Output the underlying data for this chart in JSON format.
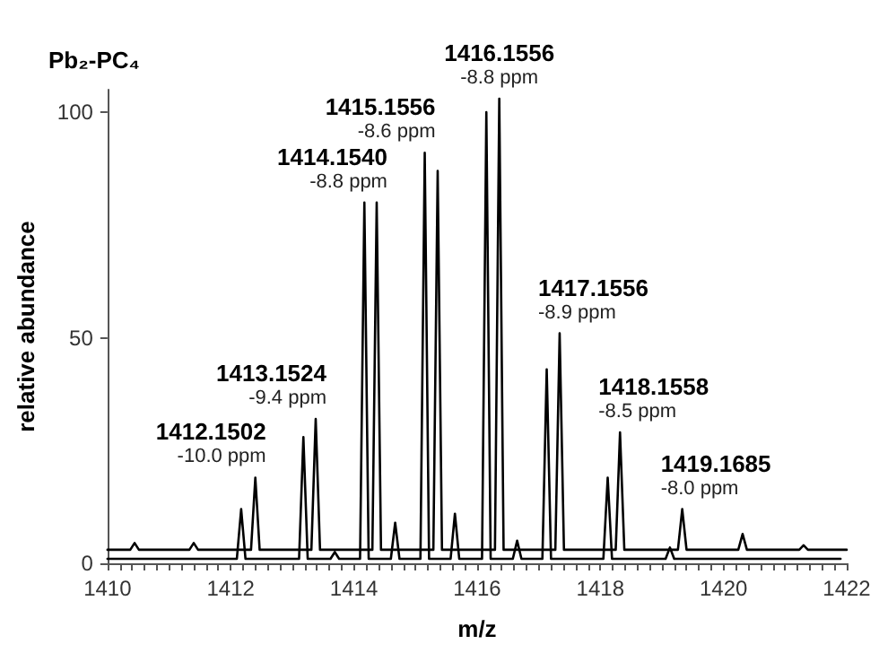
{
  "chart_data": {
    "type": "line",
    "title": "Pb₂-PC₄",
    "xlabel": "m/z",
    "ylabel": "relative abundance",
    "xlim": [
      1410,
      1422
    ],
    "xticks": [
      1410,
      {
        "value": 1410.2,
        "label": null
      },
      {
        "value": 1410.4,
        "label": null
      },
      {
        "value": 1410.6,
        "label": null
      },
      {
        "value": 1410.8,
        "label": null
      },
      {
        "value": 1411,
        "label": null
      },
      {
        "value": 1411.2,
        "label": null
      },
      {
        "value": 1411.4,
        "label": null
      },
      {
        "value": 1411.6,
        "label": null
      },
      {
        "value": 1411.8,
        "label": null
      },
      1412,
      {
        "value": 1412.2,
        "label": null
      },
      {
        "value": 1412.4,
        "label": null
      },
      {
        "value": 1412.6,
        "label": null
      },
      {
        "value": 1412.8,
        "label": null
      },
      {
        "value": 1413,
        "label": null
      },
      {
        "value": 1413.2,
        "label": null
      },
      {
        "value": 1413.4,
        "label": null
      },
      {
        "value": 1413.6,
        "label": null
      },
      {
        "value": 1413.8,
        "label": null
      },
      1414,
      {
        "value": 1414.2,
        "label": null
      },
      {
        "value": 1414.4,
        "label": null
      },
      {
        "value": 1414.6,
        "label": null
      },
      {
        "value": 1414.8,
        "label": null
      },
      {
        "value": 1415,
        "label": null
      },
      {
        "value": 1415.2,
        "label": null
      },
      {
        "value": 1415.4,
        "label": null
      },
      {
        "value": 1415.6,
        "label": null
      },
      {
        "value": 1415.8,
        "label": null
      },
      1416,
      {
        "value": 1416.2,
        "label": null
      },
      {
        "value": 1416.4,
        "label": null
      },
      {
        "value": 1416.6,
        "label": null
      },
      {
        "value": 1416.8,
        "label": null
      },
      {
        "value": 1417,
        "label": null
      },
      {
        "value": 1417.2,
        "label": null
      },
      {
        "value": 1417.4,
        "label": null
      },
      {
        "value": 1417.6,
        "label": null
      },
      {
        "value": 1417.8,
        "label": null
      },
      1418,
      {
        "value": 1418.2,
        "label": null
      },
      {
        "value": 1418.4,
        "label": null
      },
      {
        "value": 1418.6,
        "label": null
      },
      {
        "value": 1418.8,
        "label": null
      },
      {
        "value": 1419,
        "label": null
      },
      {
        "value": 1419.2,
        "label": null
      },
      {
        "value": 1419.4,
        "label": null
      },
      {
        "value": 1419.6,
        "label": null
      },
      {
        "value": 1419.8,
        "label": null
      },
      1420,
      {
        "value": 1420.2,
        "label": null
      },
      {
        "value": 1420.4,
        "label": null
      },
      {
        "value": 1420.6,
        "label": null
      },
      {
        "value": 1420.8,
        "label": null
      },
      {
        "value": 1421,
        "label": null
      },
      {
        "value": 1421.2,
        "label": null
      },
      {
        "value": 1421.4,
        "label": null
      },
      {
        "value": 1421.6,
        "label": null
      },
      {
        "value": 1421.8,
        "label": null
      },
      1422
    ],
    "ylim": [
      0,
      105
    ],
    "yticks": [
      0,
      50,
      100
    ],
    "grid": false,
    "marker": "none",
    "line_style": "solid",
    "series": [
      {
        "color": "#000000",
        "x": [
          1410,
          1412.1,
          1412.17,
          1412.24,
          1413.11,
          1413.18,
          1413.25,
          1413.62,
          1413.69,
          1413.76,
          1414.1,
          1414.17,
          1414.24,
          1414.6,
          1414.67,
          1414.74,
          1415.08,
          1415.15,
          1415.22,
          1415.57,
          1415.64,
          1415.71,
          1416.08,
          1416.15,
          1416.22,
          1416.58,
          1416.65,
          1416.72,
          1417.06,
          1417.13,
          1417.2,
          1418.05,
          1418.12,
          1418.19,
          1419.06,
          1419.13,
          1419.2,
          1421.9
        ],
        "values": [
          1,
          1,
          12,
          1,
          1,
          28,
          1,
          1,
          2.5,
          1,
          1,
          80,
          1,
          1,
          9,
          1,
          1,
          91,
          1,
          1,
          11,
          1,
          1,
          100,
          1,
          1,
          5,
          1,
          1,
          43,
          1,
          1,
          19,
          1,
          1,
          3.5,
          1,
          1
        ]
      },
      {
        "color": "#000000",
        "x": [
          1410,
          1410.37,
          1410.44,
          1410.51,
          1411.33,
          1411.4,
          1411.47,
          1412.33,
          1412.4,
          1412.47,
          1413.31,
          1413.38,
          1413.45,
          1414.3,
          1414.37,
          1414.44,
          1415.29,
          1415.36,
          1415.43,
          1416.29,
          1416.36,
          1416.43,
          1417.27,
          1417.34,
          1417.41,
          1418.25,
          1418.32,
          1418.39,
          1419.26,
          1419.33,
          1419.4,
          1420.24,
          1420.31,
          1420.38,
          1421.23,
          1421.3,
          1421.37,
          1422
        ],
        "values": [
          3,
          3,
          4.5,
          3,
          3,
          4.5,
          3,
          3,
          19,
          3,
          3,
          32,
          3,
          3,
          80,
          3,
          3,
          87,
          3,
          3,
          103,
          3,
          3,
          51,
          3,
          3,
          29,
          3,
          3,
          12,
          3,
          3,
          6.5,
          3,
          3,
          4,
          3,
          3
        ]
      }
    ],
    "annotations": [
      {
        "text": "1412.1502\n-10.0 ppm",
        "x": 1412.4,
        "y": 19
      },
      {
        "text": "1413.1524\n-9.4 ppm",
        "x": 1413.38,
        "y": 32
      },
      {
        "text": "1414.1540\n-8.8 ppm",
        "x": 1414.37,
        "y": 80
      },
      {
        "text": "1415.1556\n-8.6 ppm",
        "x": 1415.15,
        "y": 91
      },
      {
        "text": "1416.1556\n-8.8 ppm",
        "x": 1416.36,
        "y": 103
      },
      {
        "text": "1417.1556\n-8.9 ppm",
        "x": 1417.34,
        "y": 51
      },
      {
        "text": "1418.1558\n-8.5 ppm",
        "x": 1418.32,
        "y": 29
      },
      {
        "text": "1419.1685\n-8.0 ppm",
        "x": 1419.33,
        "y": 12
      }
    ]
  }
}
